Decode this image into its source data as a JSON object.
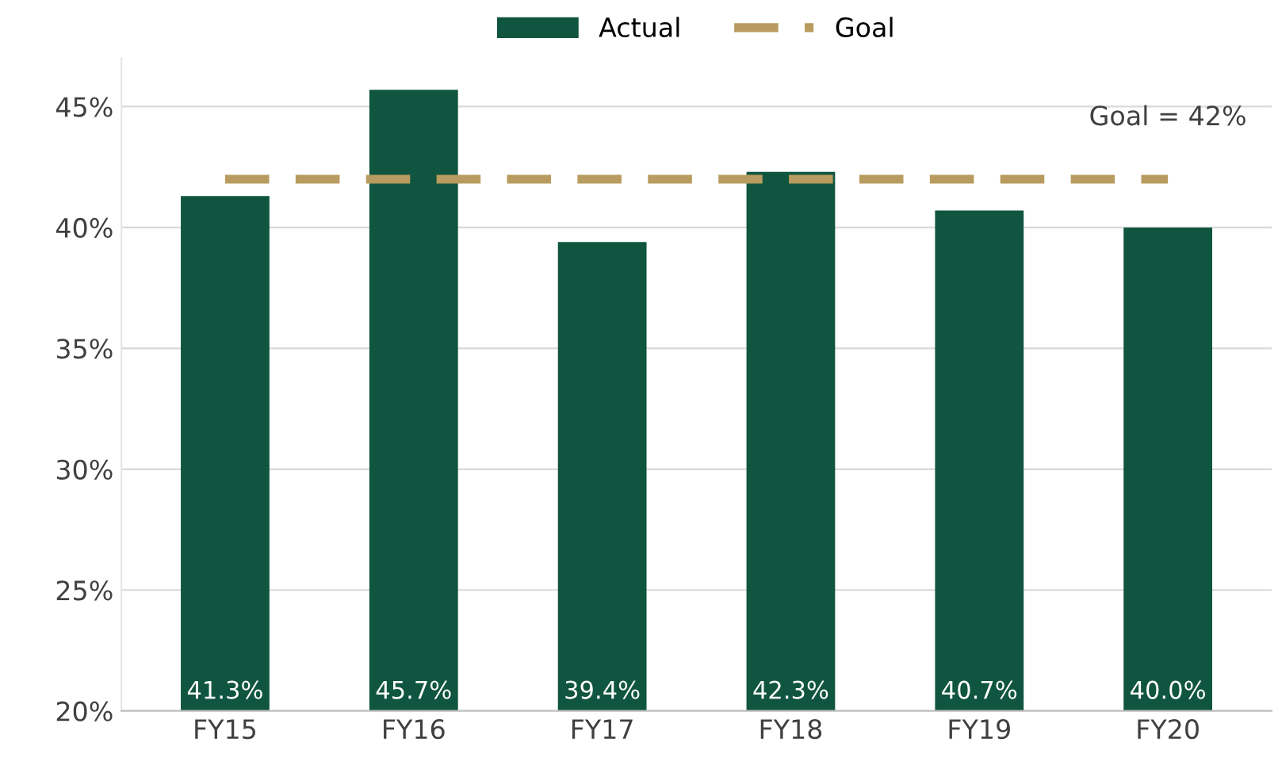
{
  "chart_data": {
    "type": "bar",
    "categories": [
      "FY15",
      "FY16",
      "FY17",
      "FY18",
      "FY19",
      "FY20"
    ],
    "series": [
      {
        "name": "Actual",
        "color": "#10553f",
        "values": [
          41.3,
          45.7,
          39.4,
          42.3,
          40.7,
          40.0
        ],
        "value_labels": [
          "41.3%",
          "45.7%",
          "39.4%",
          "42.3%",
          "40.7%",
          "40.0%"
        ]
      },
      {
        "name": "Goal",
        "type": "line",
        "color": "#b89b5e",
        "line_style": "dashed",
        "values": [
          42,
          42,
          42,
          42,
          42,
          42
        ]
      }
    ],
    "annotations": [
      {
        "text": "Goal = 42%",
        "x": "FY20",
        "y": 42
      }
    ],
    "ylim": [
      20,
      47
    ],
    "yticks": [
      {
        "value": 20,
        "label": "20%"
      },
      {
        "value": 25,
        "label": "25%"
      },
      {
        "value": 30,
        "label": "30%"
      },
      {
        "value": 35,
        "label": "35%"
      },
      {
        "value": 40,
        "label": "40%"
      },
      {
        "value": 45,
        "label": "45%"
      }
    ],
    "grid": "y",
    "legend": "top"
  }
}
